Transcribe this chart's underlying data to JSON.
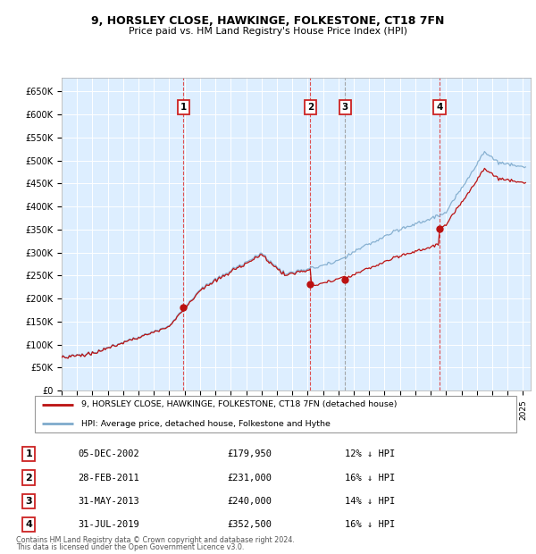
{
  "title1": "9, HORSLEY CLOSE, HAWKINGE, FOLKESTONE, CT18 7FN",
  "title2": "Price paid vs. HM Land Registry's House Price Index (HPI)",
  "xlim_start": 1995.0,
  "xlim_end": 2025.5,
  "ylim_min": 0,
  "ylim_max": 680000,
  "yticks": [
    0,
    50000,
    100000,
    150000,
    200000,
    250000,
    300000,
    350000,
    400000,
    450000,
    500000,
    550000,
    600000,
    650000
  ],
  "ytick_labels": [
    "£0",
    "£50K",
    "£100K",
    "£150K",
    "£200K",
    "£250K",
    "£300K",
    "£350K",
    "£400K",
    "£450K",
    "£500K",
    "£550K",
    "£600K",
    "£650K"
  ],
  "hpi_color": "#7eaacc",
  "price_color": "#bb1111",
  "plot_bg_color": "#ddeeff",
  "transactions": [
    {
      "label": "1",
      "year": 2002.92,
      "price": 179950,
      "vline_color": "#dd3333",
      "vline_style": "--"
    },
    {
      "label": "2",
      "year": 2011.17,
      "price": 231000,
      "vline_color": "#dd3333",
      "vline_style": "--"
    },
    {
      "label": "3",
      "year": 2013.42,
      "price": 240000,
      "vline_color": "#999999",
      "vline_style": "--"
    },
    {
      "label": "4",
      "year": 2019.58,
      "price": 352500,
      "vline_color": "#dd3333",
      "vline_style": "--"
    }
  ],
  "table_rows": [
    [
      "1",
      "05-DEC-2002",
      "£179,950",
      "12% ↓ HPI"
    ],
    [
      "2",
      "28-FEB-2011",
      "£231,000",
      "16% ↓ HPI"
    ],
    [
      "3",
      "31-MAY-2013",
      "£240,000",
      "14% ↓ HPI"
    ],
    [
      "4",
      "31-JUL-2019",
      "£352,500",
      "16% ↓ HPI"
    ]
  ],
  "legend_line1": "9, HORSLEY CLOSE, HAWKINGE, FOLKESTONE, CT18 7FN (detached house)",
  "legend_line2": "HPI: Average price, detached house, Folkestone and Hythe",
  "footer1": "Contains HM Land Registry data © Crown copyright and database right 2024.",
  "footer2": "This data is licensed under the Open Government Licence v3.0."
}
